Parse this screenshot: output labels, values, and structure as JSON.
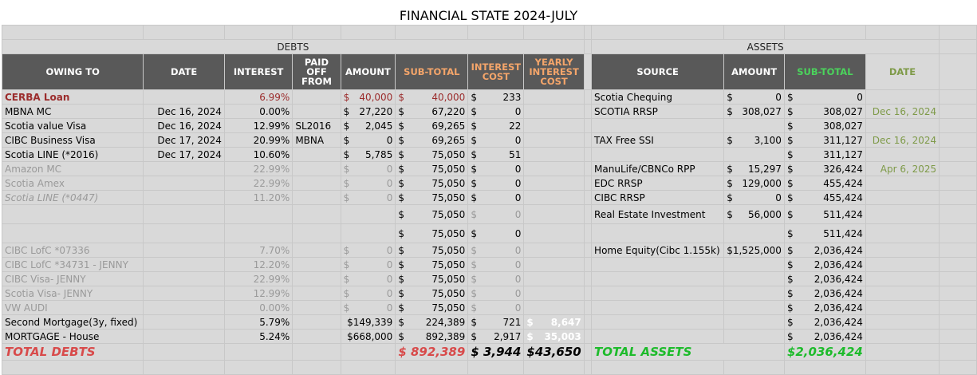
{
  "title": "FINANCIAL STATE 2024-JULY",
  "sections": {
    "debts": "DEBTS",
    "assets": "ASSETS"
  },
  "debt_headers": {
    "owing_to": "OWING TO",
    "date": "DATE",
    "interest": "INTEREST",
    "paid_off_from": "PAID OFF FROM",
    "amount": "AMOUNT",
    "sub_total": "SUB-TOTAL",
    "interest_cost": "INTEREST COST",
    "yearly_interest_cost": "YEARLY INTEREST COST"
  },
  "asset_headers": {
    "source": "SOURCE",
    "amount": "AMOUNT",
    "sub_total": "SUB-TOTAL",
    "date": "DATE"
  },
  "rows": [
    {
      "debt": {
        "owing": "CERBA Loan",
        "date": "",
        "interest": "6.99%",
        "paid": "",
        "amount": "40,000",
        "subtotal": "40,000",
        "icost": "233",
        "yearly": ""
      },
      "asset": {
        "source": "Scotia Chequing",
        "amount": "0",
        "subtotal": "0",
        "date": ""
      }
    },
    {
      "debt": {
        "owing": "MBNA MC",
        "date": "Dec 16, 2024",
        "interest": "0.00%",
        "paid": "",
        "amount": "27,220",
        "subtotal": "67,220",
        "icost": "0",
        "yearly": ""
      },
      "asset": {
        "source": "SCOTIA RRSP",
        "amount": "308,027",
        "subtotal": "308,027",
        "date": "Dec 16, 2024"
      }
    },
    {
      "debt": {
        "owing": "Scotia value Visa",
        "date": "Dec 16, 2024",
        "interest": "12.99%",
        "paid": "SL2016",
        "amount": "2,045",
        "subtotal": "69,265",
        "icost": "22",
        "yearly": ""
      },
      "asset": {
        "source": "",
        "amount": "",
        "subtotal": "308,027",
        "date": ""
      }
    },
    {
      "debt": {
        "owing": "CIBC Business Visa",
        "date": "Dec 17, 2024",
        "interest": "20.99%",
        "paid": "MBNA",
        "amount": "0",
        "subtotal": "69,265",
        "icost": "0",
        "yearly": ""
      },
      "asset": {
        "source": "TAX Free SSI",
        "amount": "3,100",
        "subtotal": "311,127",
        "date": "Dec 16, 2024"
      }
    },
    {
      "debt": {
        "owing": "Scotia LINE (*2016)",
        "date": "Dec 17, 2024",
        "interest": "10.60%",
        "paid": "",
        "amount": "5,785",
        "subtotal": "75,050",
        "icost": "51",
        "yearly": ""
      },
      "asset": {
        "source": "",
        "amount": "",
        "subtotal": "311,127",
        "date": ""
      }
    },
    {
      "debt": {
        "owing": "Amazon MC",
        "date": "",
        "interest": "22.99%",
        "paid": "",
        "amount": "0",
        "subtotal": "75,050",
        "icost": "0",
        "yearly": ""
      },
      "asset": {
        "source": "ManuLife/CBNCo RPP",
        "amount": "15,297",
        "subtotal": "326,424",
        "date": "Apr 6, 2025"
      }
    },
    {
      "debt": {
        "owing": "Scotia Amex",
        "date": "",
        "interest": "22.99%",
        "paid": "",
        "amount": "0",
        "subtotal": "75,050",
        "icost": "0",
        "yearly": ""
      },
      "asset": {
        "source": "EDC RRSP",
        "amount": "129,000",
        "subtotal": "455,424",
        "date": ""
      }
    },
    {
      "debt": {
        "owing": "Scotia LINE (*0447)",
        "date": "",
        "interest": "11.20%",
        "paid": "",
        "amount": "0",
        "subtotal": "75,050",
        "icost": "0",
        "yearly": ""
      },
      "asset": {
        "source": "CIBC RRSP",
        "amount": "0",
        "subtotal": "455,424",
        "date": ""
      }
    },
    {
      "debt": {
        "owing": "",
        "date": "",
        "interest": "",
        "paid": "",
        "amount": "",
        "subtotal": "75,050",
        "icost": "0",
        "yearly": ""
      },
      "asset": {
        "source": "Real Estate Investment",
        "amount": "56,000",
        "subtotal": "511,424",
        "date": ""
      }
    },
    {
      "debt": {
        "owing": "",
        "date": "",
        "interest": "",
        "paid": "",
        "amount": "",
        "subtotal": "75,050",
        "icost": "0",
        "yearly": ""
      },
      "asset": {
        "source": "",
        "amount": "",
        "subtotal": "511,424",
        "date": ""
      }
    },
    {
      "debt": {
        "owing": "CIBC LofC *07336",
        "date": "",
        "interest": "7.70%",
        "paid": "",
        "amount": "0",
        "subtotal": "75,050",
        "icost": "0",
        "yearly": ""
      },
      "asset": {
        "source": "Home Equity(Cibc 1.155k)",
        "amount": "$1,525,000",
        "subtotal": "2,036,424",
        "date": ""
      }
    },
    {
      "debt": {
        "owing": "CIBC LofC *34731 - JENNY",
        "date": "",
        "interest": "12.20%",
        "paid": "",
        "amount": "0",
        "subtotal": "75,050",
        "icost": "0",
        "yearly": ""
      },
      "asset": {
        "source": "",
        "amount": "",
        "subtotal": "2,036,424",
        "date": ""
      }
    },
    {
      "debt": {
        "owing": "CIBC Visa- JENNY",
        "date": "",
        "interest": "22.99%",
        "paid": "",
        "amount": "0",
        "subtotal": "75,050",
        "icost": "0",
        "yearly": ""
      },
      "asset": {
        "source": "",
        "amount": "",
        "subtotal": "2,036,424",
        "date": ""
      }
    },
    {
      "debt": {
        "owing": "Scotia Visa- JENNY",
        "date": "",
        "interest": "12.99%",
        "paid": "",
        "amount": "0",
        "subtotal": "75,050",
        "icost": "0",
        "yearly": ""
      },
      "asset": {
        "source": "",
        "amount": "",
        "subtotal": "2,036,424",
        "date": ""
      }
    },
    {
      "debt": {
        "owing": "VW AUDI",
        "date": "",
        "interest": "0.00%",
        "paid": "",
        "amount": "0",
        "subtotal": "75,050",
        "icost": "0",
        "yearly": ""
      },
      "asset": {
        "source": "",
        "amount": "",
        "subtotal": "2,036,424",
        "date": ""
      }
    },
    {
      "debt": {
        "owing": "Second Mortgage(3y, fixed)",
        "date": "",
        "interest": "5.79%",
        "paid": "",
        "amount": "$149,339",
        "subtotal": "224,389",
        "icost": "721",
        "yearly": "8,647"
      },
      "asset": {
        "source": "",
        "amount": "",
        "subtotal": "2,036,424",
        "date": ""
      }
    },
    {
      "debt": {
        "owing": "MORTGAGE - House",
        "date": "",
        "interest": "5.24%",
        "paid": "",
        "amount": "$668,000",
        "subtotal": "892,389",
        "icost": "2,917",
        "yearly": "35,003"
      },
      "asset": {
        "source": "",
        "amount": "",
        "subtotal": "2,036,424",
        "date": ""
      }
    }
  ],
  "totals": {
    "debts_label": "TOTAL DEBTS",
    "debts_subtotal": "$ 892,389",
    "debts_interest": "$ 3,944",
    "debts_yearly": "$43,650",
    "assets_label": "TOTAL ASSETS",
    "assets_subtotal": "$2,036,424"
  },
  "currency_symbol": "$",
  "colors": {
    "debts_header": "#e59b9b",
    "assets_header": "#9ccc6e",
    "column_header": "#595959",
    "highlight": "#e0455a",
    "total_debts": "#d84a4a",
    "total_assets": "#1dbb2b"
  }
}
